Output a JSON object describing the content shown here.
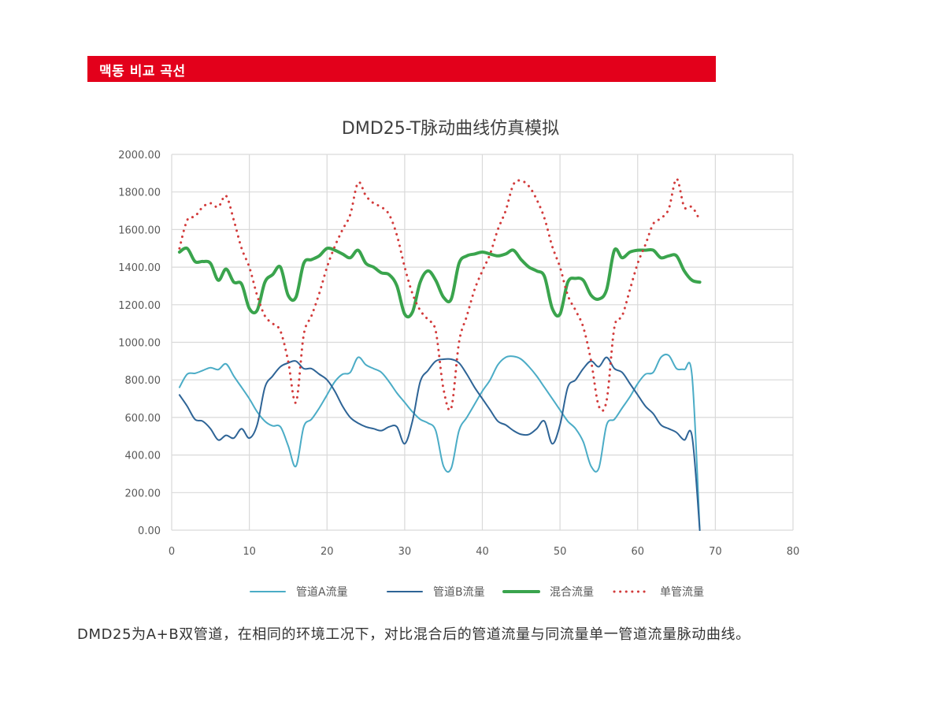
{
  "header": {
    "title": "맥동 비교 곡선"
  },
  "caption": "DMD25为A+B双管道，在相同的环境工况下，对比混合后的管道流量与同流量单一管道流量脉动曲线。",
  "colors": {
    "header_bg": "#e3001b",
    "grid": "#d9d9d9",
    "axis_text": "#595959"
  },
  "chart_data": {
    "type": "line",
    "title": "DMD25-T脉动曲线仿真模拟",
    "xlabel": "",
    "ylabel": "",
    "xlim": [
      0,
      80
    ],
    "ylim": [
      0,
      2000
    ],
    "xticks": [
      "0",
      "10",
      "20",
      "30",
      "40",
      "50",
      "60",
      "70",
      "80"
    ],
    "yticks": [
      "0.00",
      "200.00",
      "400.00",
      "600.00",
      "800.00",
      "1000.00",
      "1200.00",
      "1400.00",
      "1600.00",
      "1800.00",
      "2000.00"
    ],
    "grid": true,
    "legend_position": "bottom",
    "x": [
      1,
      2,
      3,
      4,
      5,
      6,
      7,
      8,
      9,
      10,
      11,
      12,
      13,
      14,
      15,
      16,
      17,
      18,
      19,
      20,
      21,
      22,
      23,
      24,
      25,
      26,
      27,
      28,
      29,
      30,
      31,
      32,
      33,
      34,
      35,
      36,
      37,
      38,
      39,
      40,
      41,
      42,
      43,
      44,
      45,
      46,
      47,
      48,
      49,
      50,
      51,
      52,
      53,
      54,
      55,
      56,
      57,
      58,
      59,
      60,
      61,
      62,
      63,
      64,
      65,
      66,
      67,
      68
    ],
    "series": [
      {
        "name": "管道A流量",
        "color": "#4bacc6",
        "style": "solid",
        "width": 2,
        "values": [
          760,
          830,
          835,
          850,
          865,
          855,
          885,
          820,
          760,
          700,
          630,
          580,
          555,
          550,
          450,
          340,
          550,
          590,
          650,
          720,
          790,
          830,
          840,
          920,
          880,
          860,
          840,
          790,
          730,
          680,
          630,
          590,
          570,
          530,
          340,
          330,
          530,
          600,
          670,
          740,
          800,
          880,
          920,
          925,
          910,
          870,
          820,
          760,
          700,
          640,
          580,
          540,
          470,
          340,
          330,
          560,
          590,
          650,
          710,
          780,
          830,
          840,
          920,
          930,
          860,
          855,
          820,
          0
        ]
      },
      {
        "name": "管道B流量",
        "color": "#2e6496",
        "style": "solid",
        "width": 2,
        "values": [
          720,
          660,
          590,
          580,
          540,
          480,
          505,
          490,
          540,
          490,
          560,
          760,
          820,
          870,
          890,
          900,
          860,
          860,
          830,
          800,
          740,
          660,
          600,
          570,
          550,
          540,
          530,
          550,
          550,
          460,
          580,
          790,
          850,
          900,
          910,
          910,
          890,
          830,
          760,
          700,
          640,
          580,
          560,
          530,
          510,
          510,
          540,
          580,
          460,
          560,
          760,
          800,
          860,
          900,
          870,
          920,
          860,
          840,
          780,
          720,
          660,
          620,
          560,
          540,
          520,
          480,
          500,
          0
        ]
      },
      {
        "name": "混合流量",
        "color": "#3aa44d",
        "style": "solid",
        "width": 4,
        "values": [
          1480,
          1500,
          1430,
          1430,
          1420,
          1330,
          1390,
          1320,
          1310,
          1180,
          1170,
          1320,
          1360,
          1400,
          1250,
          1240,
          1420,
          1440,
          1460,
          1500,
          1490,
          1470,
          1450,
          1490,
          1420,
          1400,
          1370,
          1360,
          1300,
          1150,
          1160,
          1320,
          1380,
          1330,
          1240,
          1230,
          1420,
          1460,
          1470,
          1480,
          1470,
          1460,
          1470,
          1490,
          1440,
          1400,
          1380,
          1350,
          1180,
          1150,
          1320,
          1340,
          1330,
          1250,
          1230,
          1280,
          1490,
          1450,
          1480,
          1490,
          1490,
          1490,
          1450,
          1460,
          1460,
          1380,
          1330,
          1320
        ]
      },
      {
        "name": "单管流量",
        "color": "#d23b3b",
        "style": "dotted",
        "width": 3,
        "values": [
          1500,
          1650,
          1670,
          1720,
          1740,
          1720,
          1780,
          1650,
          1500,
          1400,
          1250,
          1140,
          1100,
          1060,
          900,
          680,
          1040,
          1140,
          1260,
          1400,
          1510,
          1600,
          1680,
          1850,
          1780,
          1740,
          1720,
          1680,
          1570,
          1400,
          1260,
          1170,
          1120,
          1060,
          750,
          650,
          1000,
          1140,
          1280,
          1380,
          1470,
          1600,
          1700,
          1840,
          1860,
          1830,
          1760,
          1660,
          1510,
          1400,
          1250,
          1170,
          1080,
          900,
          660,
          690,
          1080,
          1140,
          1280,
          1420,
          1520,
          1630,
          1660,
          1710,
          1870,
          1720,
          1720,
          1650
        ]
      }
    ]
  }
}
